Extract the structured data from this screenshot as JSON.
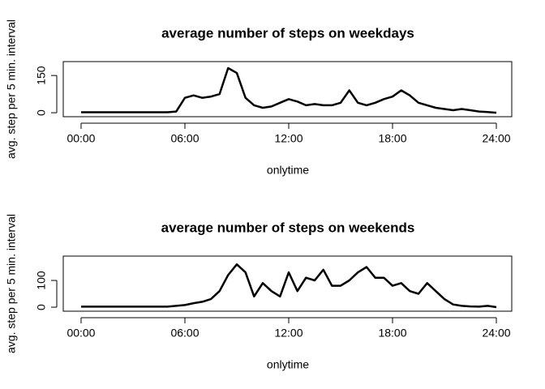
{
  "chart_data": [
    {
      "type": "line",
      "title": "average number of steps on weekdays",
      "xlabel": "onlytime",
      "ylabel": "avg. step per 5 min. interval",
      "x": [
        0,
        0.5,
        1,
        1.5,
        2,
        2.5,
        3,
        3.5,
        4,
        4.5,
        5,
        5.5,
        6,
        6.5,
        7,
        7.5,
        8,
        8.5,
        9,
        9.5,
        10,
        10.5,
        11,
        11.5,
        12,
        12.5,
        13,
        13.5,
        14,
        14.5,
        15,
        15.5,
        16,
        16.5,
        17,
        17.5,
        18,
        18.5,
        19,
        19.5,
        20,
        20.5,
        21,
        21.5,
        22,
        22.5,
        23,
        23.5,
        24
      ],
      "series": [
        {
          "color": "#000000",
          "values": [
            2,
            2,
            2,
            2,
            2,
            2,
            2,
            2,
            2,
            2,
            2,
            5,
            60,
            70,
            60,
            65,
            75,
            180,
            160,
            60,
            30,
            20,
            25,
            40,
            55,
            45,
            30,
            35,
            30,
            30,
            40,
            90,
            40,
            30,
            40,
            55,
            65,
            90,
            70,
            40,
            30,
            20,
            15,
            10,
            15,
            10,
            5,
            3,
            0
          ]
        }
      ],
      "xlim": [
        -1.03,
        24.89
      ],
      "ylim": [
        -16,
        206
      ],
      "xticks": [
        {
          "value": 0,
          "label": "00:00"
        },
        {
          "value": 6,
          "label": "06:00"
        },
        {
          "value": 12,
          "label": "12:00"
        },
        {
          "value": 18,
          "label": "18:00"
        },
        {
          "value": 24,
          "label": "24:00"
        }
      ],
      "yticks": [
        0,
        150
      ]
    },
    {
      "type": "line",
      "title": "average number of steps on weekends",
      "xlabel": "onlytime",
      "ylabel": "avg. step per 5 min. interval",
      "x": [
        0,
        0.5,
        1,
        1.5,
        2,
        2.5,
        3,
        3.5,
        4,
        4.5,
        5,
        5.5,
        6,
        6.5,
        7,
        7.5,
        8,
        8.5,
        9,
        9.5,
        10,
        10.5,
        11,
        11.5,
        12,
        12.5,
        13,
        13.5,
        14,
        14.5,
        15,
        15.5,
        16,
        16.5,
        17,
        17.5,
        18,
        18.5,
        19,
        19.5,
        20,
        20.5,
        21,
        21.5,
        22,
        22.5,
        23,
        23.5,
        24
      ],
      "series": [
        {
          "color": "#000000",
          "values": [
            2,
            2,
            2,
            2,
            2,
            2,
            2,
            2,
            2,
            2,
            2,
            5,
            8,
            15,
            20,
            30,
            60,
            120,
            160,
            130,
            40,
            90,
            60,
            40,
            130,
            60,
            110,
            100,
            140,
            80,
            80,
            100,
            130,
            150,
            110,
            110,
            80,
            90,
            60,
            50,
            90,
            60,
            30,
            10,
            5,
            3,
            2,
            5,
            0
          ]
        }
      ],
      "xlim": [
        -1.03,
        24.89
      ],
      "ylim": [
        -15,
        191
      ],
      "xticks": [
        {
          "value": 0,
          "label": "00:00"
        },
        {
          "value": 6,
          "label": "06:00"
        },
        {
          "value": 12,
          "label": "12:00"
        },
        {
          "value": 18,
          "label": "18:00"
        },
        {
          "value": 24,
          "label": "24:00"
        }
      ],
      "yticks": [
        0,
        100
      ]
    }
  ]
}
